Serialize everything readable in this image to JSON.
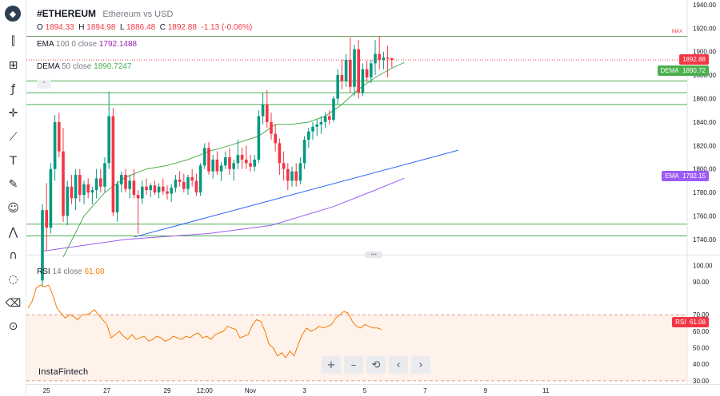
{
  "header": {
    "symbol": "#ETHEREUM",
    "description": "Ethereum vs USD",
    "ohlc": {
      "o_label": "O",
      "o_value": "1894.33",
      "h_label": "H",
      "h_value": "1894.98",
      "l_label": "L",
      "l_value": "1886.48",
      "c_label": "C",
      "c_value": "1892.88",
      "change": "-1.13 (-0.06%)"
    }
  },
  "indicators": {
    "ema": {
      "name": "EMA",
      "params": "100 0 close",
      "value": "1792.1488"
    },
    "dema": {
      "name": "DEMA",
      "params": "50 close",
      "value": "1890.7247"
    },
    "rsi": {
      "name": "RSI",
      "params": "14 close",
      "value": "61.08"
    }
  },
  "tags": {
    "max": "MAX",
    "price": "1892.88",
    "dema_name": "DEMA",
    "dema_value": "1890.72",
    "ema_name": "EMA",
    "ema_value": "1792.15",
    "rsi_name": "RSI",
    "rsi_value": "61.08"
  },
  "watermark": "InstaFintech",
  "toolbar": {
    "icons": [
      "logo-icon",
      "candles-icon",
      "chart-type-icon",
      "function-icon",
      "crosshair-icon",
      "line-tools-icon",
      "text-icon",
      "brush-icon",
      "emoji-icon",
      "pattern-icon",
      "magnet-icon",
      "eye-off-icon",
      "trash-icon",
      "lock-icon"
    ]
  },
  "navigation": {
    "zoom_in": "+",
    "zoom_out": "–",
    "reset": "⟲",
    "back": "‹",
    "forward": "›"
  },
  "colors": {
    "up": "#089981",
    "down": "#f23645",
    "ema": "#9c5cf5",
    "dema": "#4caf50",
    "rsi": "#f57c00",
    "trend": "#2962ff",
    "level": "#4caf50"
  },
  "chart_data": [
    {
      "type": "candlestick",
      "title": "#ETHEREUM",
      "subtitle": "Ethereum vs USD",
      "y_ticks": [
        "1740.00",
        "1760.00",
        "1780.00",
        "1800.00",
        "1820.00",
        "1840.00",
        "1860.00",
        "1880.00",
        "1900.00",
        "1920.00",
        "1940.00"
      ],
      "ylim": [
        1727,
        1944
      ],
      "x_ticks": [
        "25",
        "27",
        "29",
        "12:00",
        "Nov",
        "3",
        "5",
        "7",
        "9",
        "11"
      ],
      "x_tick_positions": [
        1,
        15.5,
        30,
        39,
        50,
        63,
        77.5,
        92,
        106.5,
        121
      ],
      "candles": [
        [
          1705,
          1770,
          1700,
          1765
        ],
        [
          1765,
          1788,
          1730,
          1750
        ],
        [
          1750,
          1805,
          1745,
          1800
        ],
        [
          1800,
          1846,
          1790,
          1840
        ],
        [
          1840,
          1848,
          1810,
          1815
        ],
        [
          1815,
          1835,
          1755,
          1760
        ],
        [
          1760,
          1790,
          1752,
          1785
        ],
        [
          1785,
          1795,
          1770,
          1775
        ],
        [
          1775,
          1800,
          1765,
          1795
        ],
        [
          1795,
          1800,
          1772,
          1778
        ],
        [
          1778,
          1790,
          1770,
          1787
        ],
        [
          1787,
          1792,
          1775,
          1780
        ],
        [
          1780,
          1785,
          1770,
          1782
        ],
        [
          1782,
          1800,
          1775,
          1792
        ],
        [
          1792,
          1800,
          1780,
          1785
        ],
        [
          1785,
          1810,
          1780,
          1805
        ],
        [
          1805,
          1866,
          1800,
          1845
        ],
        [
          1845,
          1852,
          1760,
          1763
        ],
        [
          1763,
          1790,
          1755,
          1787
        ],
        [
          1787,
          1798,
          1780,
          1795
        ],
        [
          1795,
          1800,
          1780,
          1783
        ],
        [
          1783,
          1795,
          1775,
          1790
        ],
        [
          1790,
          1800,
          1775,
          1778
        ],
        [
          1778,
          1782,
          1745,
          1775
        ],
        [
          1775,
          1790,
          1770,
          1785
        ],
        [
          1785,
          1792,
          1778,
          1782
        ],
        [
          1782,
          1788,
          1776,
          1786
        ],
        [
          1786,
          1790,
          1778,
          1780
        ],
        [
          1780,
          1788,
          1775,
          1785
        ],
        [
          1785,
          1792,
          1778,
          1781
        ],
        [
          1781,
          1786,
          1774,
          1779
        ],
        [
          1779,
          1787,
          1772,
          1784
        ],
        [
          1784,
          1795,
          1780,
          1791
        ],
        [
          1791,
          1798,
          1785,
          1789
        ],
        [
          1789,
          1796,
          1780,
          1783
        ],
        [
          1783,
          1795,
          1778,
          1793
        ],
        [
          1793,
          1800,
          1785,
          1790
        ],
        [
          1790,
          1796,
          1777,
          1780
        ],
        [
          1780,
          1805,
          1777,
          1803
        ],
        [
          1803,
          1822,
          1800,
          1818
        ],
        [
          1818,
          1823,
          1795,
          1798
        ],
        [
          1798,
          1812,
          1792,
          1808
        ],
        [
          1808,
          1815,
          1795,
          1798
        ],
        [
          1798,
          1806,
          1790,
          1803
        ],
        [
          1803,
          1815,
          1800,
          1810
        ],
        [
          1810,
          1818,
          1795,
          1800
        ],
        [
          1800,
          1808,
          1790,
          1805
        ],
        [
          1805,
          1825,
          1800,
          1812
        ],
        [
          1812,
          1818,
          1800,
          1808
        ],
        [
          1808,
          1820,
          1800,
          1805
        ],
        [
          1805,
          1812,
          1798,
          1802
        ],
        [
          1802,
          1812,
          1798,
          1808
        ],
        [
          1808,
          1850,
          1805,
          1845
        ],
        [
          1845,
          1865,
          1838,
          1855
        ],
        [
          1855,
          1867,
          1835,
          1840
        ],
        [
          1840,
          1848,
          1825,
          1830
        ],
        [
          1830,
          1838,
          1815,
          1822
        ],
        [
          1822,
          1826,
          1795,
          1805
        ],
        [
          1805,
          1815,
          1790,
          1800
        ],
        [
          1800,
          1805,
          1782,
          1790
        ],
        [
          1790,
          1802,
          1785,
          1798
        ],
        [
          1798,
          1805,
          1785,
          1790
        ],
        [
          1790,
          1810,
          1787,
          1805
        ],
        [
          1805,
          1828,
          1800,
          1825
        ],
        [
          1825,
          1835,
          1818,
          1832
        ],
        [
          1832,
          1840,
          1825,
          1836
        ],
        [
          1836,
          1842,
          1828,
          1838
        ],
        [
          1838,
          1845,
          1830,
          1840
        ],
        [
          1840,
          1848,
          1835,
          1845
        ],
        [
          1845,
          1850,
          1838,
          1842
        ],
        [
          1842,
          1862,
          1840,
          1860
        ],
        [
          1860,
          1885,
          1855,
          1880
        ],
        [
          1880,
          1893,
          1868,
          1875
        ],
        [
          1875,
          1898,
          1870,
          1893
        ],
        [
          1893,
          1912,
          1865,
          1870
        ],
        [
          1870,
          1906,
          1862,
          1902
        ],
        [
          1902,
          1910,
          1860,
          1865
        ],
        [
          1865,
          1890,
          1862,
          1885
        ],
        [
          1885,
          1892,
          1874,
          1878
        ],
        [
          1878,
          1893,
          1873,
          1890
        ],
        [
          1890,
          1910,
          1880,
          1898
        ],
        [
          1898,
          1913,
          1885,
          1893
        ],
        [
          1893,
          1900,
          1885,
          1895
        ],
        [
          1895,
          1905,
          1878,
          1894
        ],
        [
          1894.33,
          1894.98,
          1886.48,
          1892.88
        ]
      ],
      "ema_100": [
        [
          0,
          1730
        ],
        [
          10,
          1735
        ],
        [
          20,
          1740
        ],
        [
          40,
          1745
        ],
        [
          55,
          1752
        ],
        [
          70,
          1768
        ],
        [
          80,
          1782
        ],
        [
          87,
          1792.15
        ]
      ],
      "dema_50": [
        [
          5,
          1725
        ],
        [
          10,
          1760
        ],
        [
          15,
          1780
        ],
        [
          20,
          1793
        ],
        [
          25,
          1800
        ],
        [
          30,
          1803
        ],
        [
          35,
          1808
        ],
        [
          40,
          1815
        ],
        [
          45,
          1820
        ],
        [
          52,
          1828
        ],
        [
          56,
          1838
        ],
        [
          60,
          1838
        ],
        [
          64,
          1840
        ],
        [
          68,
          1845
        ],
        [
          72,
          1855
        ],
        [
          76,
          1868
        ],
        [
          80,
          1878
        ],
        [
          84,
          1886
        ],
        [
          87,
          1890.72
        ]
      ],
      "trendline": [
        [
          22,
          1742
        ],
        [
          100,
          1816
        ]
      ],
      "levels": [
        1913,
        1875,
        1865,
        1855,
        1753,
        1743
      ],
      "max_level": 1913
    },
    {
      "type": "line",
      "title": "RSI",
      "series": [
        {
          "name": "RSI",
          "values": [
            74,
            78,
            86,
            88,
            87,
            88,
            82,
            74,
            71,
            68,
            70,
            69,
            67,
            70,
            70,
            71,
            73,
            70,
            67,
            64,
            56,
            58,
            60,
            57,
            55,
            58,
            55,
            56,
            57,
            54,
            55,
            57,
            56,
            54,
            55,
            57,
            56,
            55,
            57,
            56,
            58,
            59,
            56,
            57,
            55,
            58,
            59,
            60,
            63,
            62,
            61,
            56,
            57,
            58,
            64,
            67,
            66,
            60,
            52,
            50,
            45,
            47,
            44,
            48,
            45,
            52,
            58,
            62,
            60,
            61,
            63,
            62,
            63,
            64,
            68,
            70,
            72,
            71,
            66,
            63,
            62,
            64,
            63,
            62,
            62,
            61.08
          ]
        }
      ],
      "y_ticks": [
        "30.00",
        "40.00",
        "50.00",
        "60.00",
        "70.00",
        "90.00",
        "100.00"
      ],
      "ylim": [
        28,
        104
      ],
      "bands": [
        30,
        70
      ]
    }
  ]
}
